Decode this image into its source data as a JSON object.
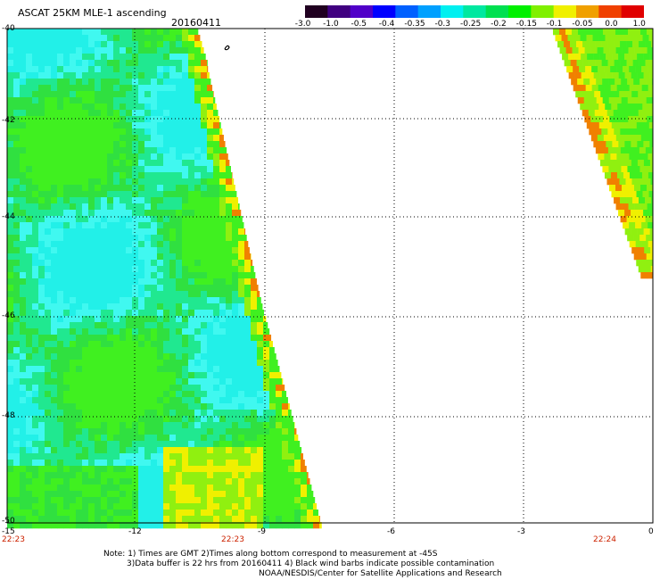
{
  "header": {
    "title": "ASCAT 25KM MLE-1 ascending",
    "date": "20160411"
  },
  "colorbar": {
    "labels": [
      "-3.0",
      "-1.0",
      "-0.5",
      "-0.4",
      "-0.35",
      "-0.3",
      "-0.25",
      "-0.2",
      "-0.15",
      "-0.1",
      "-0.05",
      "0.0",
      "1.0"
    ],
    "colors": [
      "#200020",
      "#400080",
      "#5000c8",
      "#0000ff",
      "#0060ff",
      "#00a0ff",
      "#00f0f0",
      "#00e8a0",
      "#00e050",
      "#00f000",
      "#80f000",
      "#f0f000",
      "#f0a000",
      "#f04000",
      "#e00000"
    ]
  },
  "axes": {
    "x_ticks": [
      "-15",
      "-12",
      "-9",
      "-6",
      "-3",
      "0"
    ],
    "y_ticks": [
      "-40",
      "-42",
      "-44",
      "-46",
      "-48",
      "-50"
    ]
  },
  "times": {
    "left": "22:23",
    "mid": "22:23",
    "right": "22:24"
  },
  "notes": {
    "line1": "Note: 1) Times are GMT 2)Times along bottom correspond to measurement at -45S",
    "line2": "3)Data buffer is 22 hrs from 20160411 4) Black wind barbs indicate possible contamination",
    "line3": "NOAA/NESDIS/Center for Satellite Applications and Research"
  },
  "swath_palette": {
    "cyan": "#22f0e8",
    "lightcyan": "#40f8f0",
    "teal": "#20e890",
    "green": "#30e040",
    "brightgreen": "#40f020",
    "lime": "#90f010",
    "yellow": "#f0f000",
    "orange": "#f08000"
  }
}
